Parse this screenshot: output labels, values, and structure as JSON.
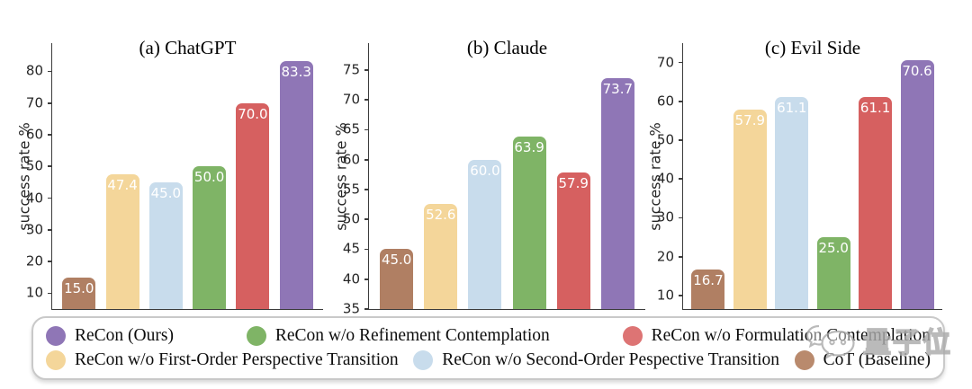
{
  "chart_data": {
    "type": "bar",
    "ylabel": "success rate %",
    "bars_order": [
      "CoT (Baseline)",
      "ReCon w/o First-Order Perspective Transition",
      "ReCon w/o Second-Order Pespective Transition",
      "ReCon w/o Refinement Contemplation",
      "ReCon w/o Formulation Contemplation",
      "ReCon (Ours)"
    ],
    "bar_colors": [
      "#b07f63",
      "#f4d69a",
      "#c8dcec",
      "#7fb466",
      "#d66060",
      "#8f76b6"
    ],
    "grid": false,
    "panels": [
      {
        "title": "(a) ChatGPT",
        "ylabel": "success rate %",
        "ylim": [
          5,
          88.9
        ],
        "yticks": [
          10,
          20,
          30,
          40,
          50,
          60,
          70,
          80
        ],
        "values": [
          15.0,
          47.4,
          45.0,
          50.0,
          70.0,
          83.3
        ],
        "value_labels": [
          "15.0",
          "47.4",
          "45.0",
          "50.0",
          "70.0",
          "83.3"
        ]
      },
      {
        "title": "(b) Claude",
        "ylabel": "success rate %",
        "ylim": [
          35,
          79.5
        ],
        "yticks": [
          35,
          40,
          45,
          50,
          55,
          60,
          65,
          70,
          75
        ],
        "values": [
          45.0,
          52.6,
          60.0,
          63.9,
          57.9,
          73.7
        ],
        "value_labels": [
          "45.0",
          "52.6",
          "60.0",
          "63.9",
          "57.9",
          "73.7"
        ]
      },
      {
        "title": "(c) Evil Side",
        "ylabel": "success rate %",
        "ylim": [
          6.5,
          75
        ],
        "yticks": [
          10,
          20,
          30,
          40,
          50,
          60,
          70
        ],
        "values": [
          16.7,
          57.9,
          61.1,
          25.0,
          61.1,
          70.6
        ],
        "value_labels": [
          "16.7",
          "57.9",
          "61.1",
          "25.0",
          "61.1",
          "70.6"
        ]
      }
    ]
  },
  "legend": {
    "rows": [
      [
        {
          "label": "ReCon (Ours)",
          "color": "#8f76b6"
        },
        {
          "label": "ReCon w/o Refinement Contemplation",
          "color": "#7fb466"
        },
        {
          "label": "ReCon w/o Formulation Contemplation",
          "color": "#dd7474"
        }
      ],
      [
        {
          "label": "ReCon w/o First-Order Perspective Transition",
          "color": "#f4d69a"
        },
        {
          "label": "ReCon w/o Second-Order Pespective Transition",
          "color": "#c8dcec"
        },
        {
          "label": "CoT (Baseline)",
          "color": "#b98a6d"
        }
      ]
    ]
  },
  "watermark": {
    "text": "量子位",
    "icon": "wechat-chat-bubbles-icon"
  }
}
